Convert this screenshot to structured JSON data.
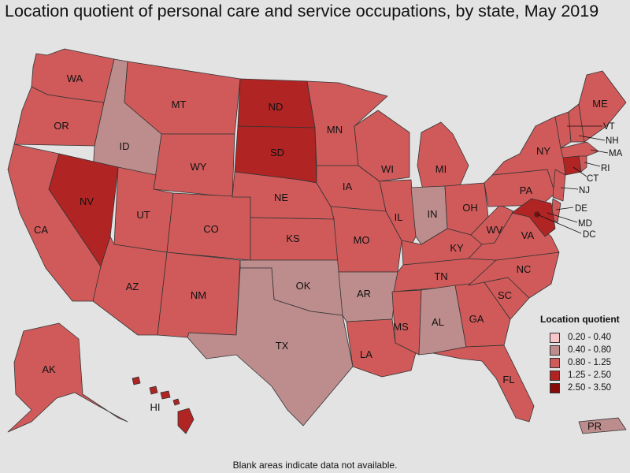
{
  "title": "Location quotient of personal care and service occupations, by state, May 2019",
  "footnote": "Blank areas indicate data not available.",
  "legend": {
    "title": "Location quotient",
    "items": [
      {
        "label": "0.20 - 0.40",
        "color": "#f7c6c9"
      },
      {
        "label": "0.40 - 0.80",
        "color": "#bd8d8d"
      },
      {
        "label": "0.80 - 1.25",
        "color": "#d05a5a"
      },
      {
        "label": "1.25 - 2.50",
        "color": "#b02424"
      },
      {
        "label": "2.50 - 3.50",
        "color": "#860a0a"
      }
    ]
  },
  "states": {
    "WA": {
      "label": "WA",
      "bin": 2
    },
    "OR": {
      "label": "OR",
      "bin": 2
    },
    "CA": {
      "label": "CA",
      "bin": 2
    },
    "ID": {
      "label": "ID",
      "bin": 1
    },
    "NV": {
      "label": "NV",
      "bin": 3
    },
    "MT": {
      "label": "MT",
      "bin": 2
    },
    "WY": {
      "label": "WY",
      "bin": 2
    },
    "UT": {
      "label": "UT",
      "bin": 2
    },
    "AZ": {
      "label": "AZ",
      "bin": 2
    },
    "CO": {
      "label": "CO",
      "bin": 2
    },
    "NM": {
      "label": "NM",
      "bin": 2
    },
    "ND": {
      "label": "ND",
      "bin": 3
    },
    "SD": {
      "label": "SD",
      "bin": 3
    },
    "NE": {
      "label": "NE",
      "bin": 2
    },
    "KS": {
      "label": "KS",
      "bin": 2
    },
    "OK": {
      "label": "OK",
      "bin": 1
    },
    "TX": {
      "label": "TX",
      "bin": 1
    },
    "MN": {
      "label": "MN",
      "bin": 2
    },
    "IA": {
      "label": "IA",
      "bin": 2
    },
    "MO": {
      "label": "MO",
      "bin": 2
    },
    "AR": {
      "label": "AR",
      "bin": 1
    },
    "LA": {
      "label": "LA",
      "bin": 2
    },
    "WI": {
      "label": "WI",
      "bin": 2
    },
    "IL": {
      "label": "IL",
      "bin": 2
    },
    "MI": {
      "label": "MI",
      "bin": 2
    },
    "IN": {
      "label": "IN",
      "bin": 1
    },
    "OH": {
      "label": "OH",
      "bin": 2
    },
    "KY": {
      "label": "KY",
      "bin": 2
    },
    "TN": {
      "label": "TN",
      "bin": 2
    },
    "MS": {
      "label": "MS",
      "bin": 2
    },
    "AL": {
      "label": "AL",
      "bin": 1
    },
    "GA": {
      "label": "GA",
      "bin": 2
    },
    "FL": {
      "label": "FL",
      "bin": 2
    },
    "SC": {
      "label": "SC",
      "bin": 2
    },
    "NC": {
      "label": "NC",
      "bin": 2
    },
    "VA": {
      "label": "VA",
      "bin": 2
    },
    "WV": {
      "label": "WV",
      "bin": 2
    },
    "PA": {
      "label": "PA",
      "bin": 2
    },
    "NY": {
      "label": "NY",
      "bin": 2
    },
    "VT": {
      "label": "VT",
      "bin": 2
    },
    "NH": {
      "label": "NH",
      "bin": 2
    },
    "ME": {
      "label": "ME",
      "bin": 2
    },
    "MA": {
      "label": "MA",
      "bin": 2
    },
    "RI": {
      "label": "RI",
      "bin": 2
    },
    "CT": {
      "label": "CT",
      "bin": 3
    },
    "NJ": {
      "label": "NJ",
      "bin": 2
    },
    "DE": {
      "label": "DE",
      "bin": 2
    },
    "MD": {
      "label": "MD",
      "bin": 3
    },
    "DC": {
      "label": "DC",
      "bin": 4
    },
    "AK": {
      "label": "AK",
      "bin": 2
    },
    "HI": {
      "label": "HI",
      "bin": 3
    },
    "PR": {
      "label": "PR",
      "bin": 1
    }
  }
}
